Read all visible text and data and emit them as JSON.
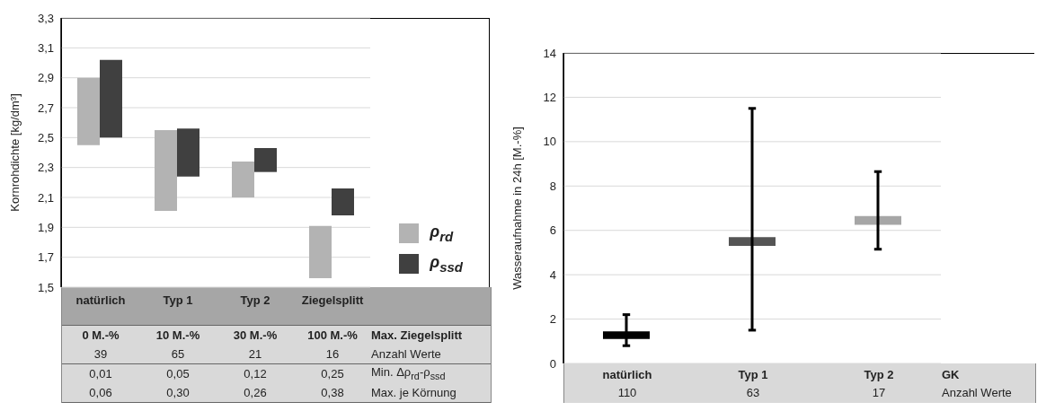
{
  "chart_data": [
    {
      "type": "bar",
      "categories": [
        "natürlich",
        "Typ 1",
        "Typ 2",
        "Ziegelsplitt"
      ],
      "ylabel": "Kornrohdichte [kg/dm³]",
      "ylim": [
        1.5,
        3.3
      ],
      "yticks": [
        {
          "value": 1.5,
          "label": "1,5"
        },
        {
          "value": 1.7,
          "label": "1,7"
        },
        {
          "value": 1.9,
          "label": "1,9"
        },
        {
          "value": 2.1,
          "label": "2,1"
        },
        {
          "value": 2.3,
          "label": "2,3"
        },
        {
          "value": 2.5,
          "label": "2,5"
        },
        {
          "value": 2.7,
          "label": "2,7"
        },
        {
          "value": 2.9,
          "label": "2,9"
        },
        {
          "value": 3.1,
          "label": "3,1"
        },
        {
          "value": 3.3,
          "label": "3,3"
        }
      ],
      "grid": "y",
      "legend": "right",
      "series": [
        {
          "name": "ρ$_{rd}$",
          "color": "#b3b3b3",
          "base": [
            2.45,
            2.01,
            2.1,
            1.56
          ],
          "values": [
            0.45,
            0.54,
            0.24,
            0.35
          ]
        },
        {
          "name": "ρ$_{ssd}$",
          "color": "#404040",
          "base": [
            2.5,
            2.24,
            2.27,
            1.98
          ],
          "values": [
            0.52,
            0.32,
            0.16,
            0.18
          ]
        }
      ],
      "annotations": [
        "0 M.-%",
        "10 M.-%",
        "30 M.-%",
        "100 M.-%",
        "Max. Ziegelsplitt",
        "39",
        "65",
        "21",
        "16",
        "Anzahl Werte",
        "0,01",
        "0,05",
        "0,12",
        "0,25",
        "Min. Δρ$_{rd}$-ρ$_{ssd}$",
        "0,06",
        "0,30",
        "0,26",
        "0,38",
        "Max. je Körnung"
      ]
    },
    {
      "type": "bar",
      "categories": [
        "natürlich",
        "Typ 1",
        "Typ 2"
      ],
      "ylabel": "Wasseraufnahme in 24h [M.-%]",
      "ylim": [
        0,
        14
      ],
      "yticks": [
        0,
        2,
        4,
        6,
        8,
        10,
        12,
        14
      ],
      "grid": "y",
      "base": [
        1.1,
        5.3,
        6.25
      ],
      "values": [
        0.35,
        0.4,
        0.4
      ],
      "errors": [
        [
          0.8,
          2.2
        ],
        [
          1.5,
          11.5
        ],
        [
          5.15,
          8.65
        ]
      ],
      "colors": [
        "#000000",
        "#555555",
        "#a6a6a6"
      ],
      "annotations": [
        "GK",
        "110",
        "63",
        "17",
        "Anzahl Werte"
      ]
    }
  ]
}
